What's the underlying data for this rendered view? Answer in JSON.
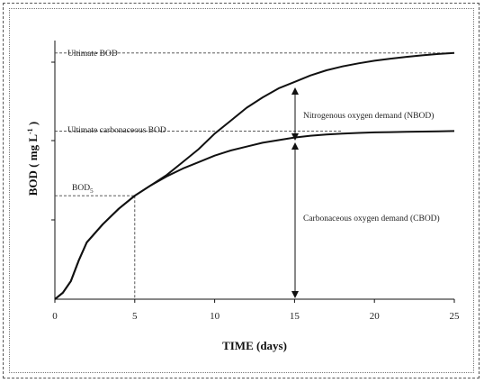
{
  "chart_data": {
    "type": "line",
    "xlabel": "TIME (days)",
    "ylabel": "BOD ( mg L",
    "ylabel_sup": "-1",
    "ylabel_close": " )",
    "x_ticks": [
      0,
      5,
      10,
      15,
      20,
      25
    ],
    "xlim": [
      0,
      25
    ],
    "ylim": [
      0,
      100
    ],
    "grid": false,
    "series": [
      {
        "x": [
          0,
          0.5,
          1,
          1.5,
          2,
          3,
          4,
          5,
          6,
          7,
          8,
          9,
          10,
          11,
          12,
          13,
          14,
          15,
          16,
          17,
          18,
          19,
          20,
          21,
          22,
          23,
          24,
          25
        ],
        "y": [
          0,
          2.5,
          7,
          15,
          22,
          29,
          35,
          40,
          44,
          48,
          53,
          58,
          64,
          69,
          74,
          78,
          81.5,
          84,
          86.5,
          88.5,
          90,
          91.2,
          92.2,
          93,
          93.7,
          94.3,
          94.8,
          95.2
        ]
      },
      {
        "x": [
          0,
          0.5,
          1,
          1.5,
          2,
          3,
          4,
          5,
          6,
          7,
          8,
          9,
          10,
          11,
          12,
          13,
          14,
          15,
          16,
          17,
          18,
          19,
          20,
          21,
          22,
          23,
          24,
          25
        ],
        "y": [
          0,
          2.5,
          7,
          15,
          22,
          29,
          35,
          40,
          44,
          47.5,
          50.5,
          53,
          55.5,
          57.5,
          59,
          60.5,
          61.5,
          62.5,
          63.2,
          63.7,
          64,
          64.3,
          64.5,
          64.6,
          64.7,
          64.8,
          64.9,
          65
        ]
      }
    ],
    "reference_lines": {
      "ultimate_bod": 95.2,
      "ultimate_cbod": 65,
      "bod5_y": 40,
      "bod5_x": 5
    },
    "annotations": {
      "ultimate_bod": "Ultimate BOD",
      "ultimate_cbod": "Ultimate carbonaceous BOD",
      "bod5_main": "BOD",
      "bod5_sub": "5",
      "nbod": "Nitrogenous oxygen demand (NBOD)",
      "cbod": "Carbonaceous oxygen demand (CBOD)"
    }
  }
}
